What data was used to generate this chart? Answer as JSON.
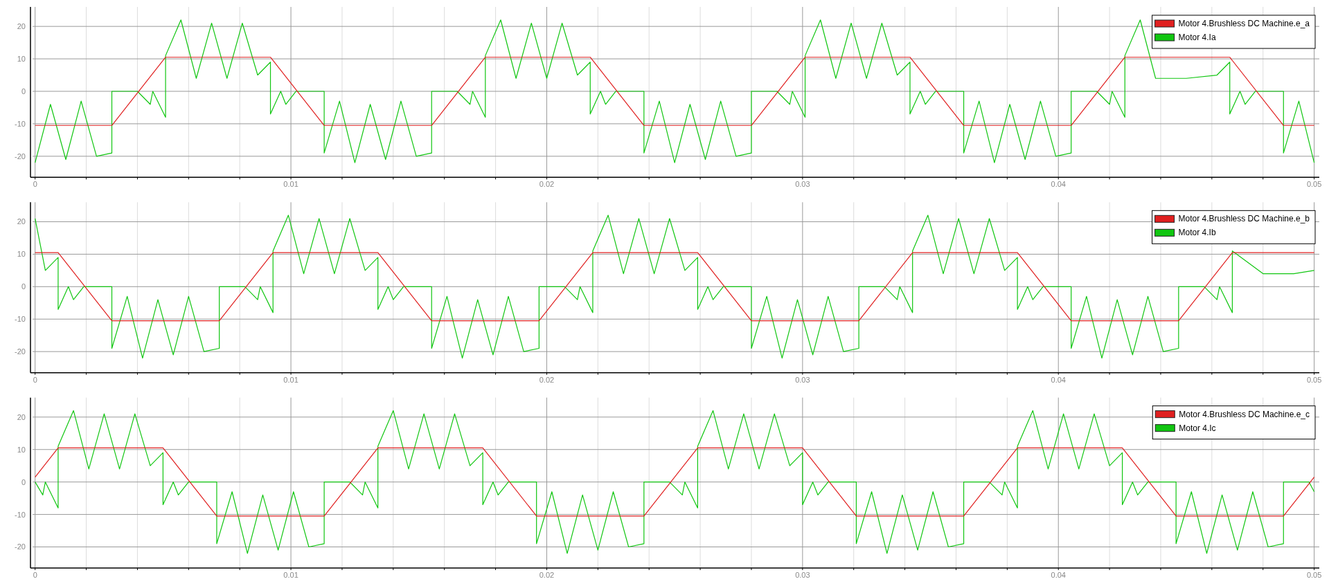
{
  "chart_data": [
    {
      "type": "line",
      "xlim": [
        -0.0001,
        0.0502
      ],
      "ylim": [
        -26.5,
        26
      ],
      "xticks": [
        0,
        {
          "value": 0.002,
          "label": null
        },
        {
          "value": 0.004,
          "label": null
        },
        {
          "value": 0.006,
          "label": null
        },
        {
          "value": 0.008,
          "label": null
        },
        0.01,
        {
          "value": 0.012,
          "label": null
        },
        {
          "value": 0.014,
          "label": null
        },
        {
          "value": 0.016,
          "label": null
        },
        {
          "value": 0.018,
          "label": null
        },
        0.02,
        {
          "value": 0.022,
          "label": null
        },
        {
          "value": 0.024,
          "label": null
        },
        {
          "value": 0.026,
          "label": null
        },
        {
          "value": 0.028,
          "label": null
        },
        0.03,
        {
          "value": 0.032,
          "label": null
        },
        {
          "value": 0.034,
          "label": null
        },
        {
          "value": 0.036,
          "label": null
        },
        {
          "value": 0.038,
          "label": null
        },
        0.04,
        {
          "value": 0.042,
          "label": null
        },
        {
          "value": 0.044,
          "label": null
        },
        {
          "value": 0.046,
          "label": null
        },
        {
          "value": 0.048,
          "label": null
        },
        0.05
      ],
      "yticks": [
        -20,
        -10,
        0,
        10,
        20
      ],
      "grid": true,
      "legend": "top right",
      "series": [
        {
          "name": "Motor 4.Brushless DC Machine.e_a",
          "color": "#e02020",
          "x": [
            0,
            0.003,
            0.0051,
            0.0092,
            0.0113,
            0.0155,
            0.0176,
            0.0217,
            0.0238,
            0.028,
            0.0301,
            0.0342,
            0.0363,
            0.0405,
            0.0426,
            0.0467,
            0.0488,
            0.05
          ],
          "values": [
            -10.5,
            -10.5,
            10.5,
            10.5,
            -10.5,
            -10.5,
            10.5,
            10.5,
            -10.5,
            -10.5,
            10.5,
            10.5,
            -10.5,
            -10.5,
            10.5,
            10.5,
            -10.5,
            -10.5
          ]
        },
        {
          "name": "Motor 4.Ia",
          "color": "#11c611",
          "x": [
            0,
            0.0006,
            0.0012,
            0.0018,
            0.0024,
            0.003,
            0.003,
            0.004,
            0.0045,
            0.0046,
            0.0051,
            0.0051,
            0.0057,
            0.0063,
            0.0069,
            0.0075,
            0.0081,
            0.0087,
            0.0092,
            0.0092,
            0.0096,
            0.0098,
            0.0102,
            0.0113,
            0.0113,
            0.0119,
            0.0125,
            0.0131,
            0.0137,
            0.0143,
            0.0149,
            0.0155,
            0.0155,
            0.0165,
            0.017,
            0.0171,
            0.0176,
            0.0176,
            0.0182,
            0.0188,
            0.0194,
            0.02,
            0.0206,
            0.0212,
            0.0217,
            0.0217,
            0.0221,
            0.0223,
            0.0227,
            0.0238,
            0.0238,
            0.0244,
            0.025,
            0.0256,
            0.0262,
            0.0268,
            0.0274,
            0.028,
            0.028,
            0.029,
            0.0295,
            0.0296,
            0.0301,
            0.0301,
            0.0307,
            0.0313,
            0.0319,
            0.0325,
            0.0331,
            0.0337,
            0.0342,
            0.0342,
            0.0346,
            0.0348,
            0.0352,
            0.0363,
            0.0363,
            0.0369,
            0.0375,
            0.0381,
            0.0387,
            0.0393,
            0.0399,
            0.0405,
            0.0405,
            0.0415,
            0.042,
            0.0421,
            0.0426,
            0.0426,
            0.0432,
            0.0438,
            0.045,
            0.0462,
            0.0467,
            0.0467,
            0.0471,
            0.0473,
            0.0477,
            0.0488,
            0.0488,
            0.0494,
            0.05
          ],
          "values": [
            -22,
            -4,
            -21,
            -3,
            -20,
            -19,
            0,
            0,
            -4,
            0,
            -8,
            11,
            22,
            4,
            21,
            4,
            21,
            5,
            9,
            -7,
            0,
            -4,
            0,
            0,
            -19,
            -3,
            -22,
            -4,
            -21,
            -3,
            -20,
            -19,
            0,
            0,
            -4,
            0,
            -8,
            11,
            22,
            4,
            21,
            4,
            21,
            5,
            9,
            -7,
            0,
            -4,
            0,
            0,
            -19,
            -3,
            -22,
            -4,
            -21,
            -3,
            -20,
            -19,
            0,
            0,
            -4,
            0,
            -8,
            11,
            22,
            4,
            21,
            4,
            21,
            5,
            9,
            -7,
            0,
            -4,
            0,
            0,
            -19,
            -3,
            -22,
            -4,
            -21,
            -3,
            -20,
            -19,
            0,
            0,
            -4,
            0,
            -8,
            11,
            22,
            4,
            4,
            5,
            9,
            -7,
            0,
            -4,
            0,
            0,
            -19,
            -3,
            -22
          ]
        }
      ]
    },
    {
      "type": "line",
      "xlim": [
        -0.0001,
        0.0502
      ],
      "ylim": [
        -26.5,
        26
      ],
      "xticks": [
        0,
        {
          "value": 0.002,
          "label": null
        },
        {
          "value": 0.004,
          "label": null
        },
        {
          "value": 0.006,
          "label": null
        },
        {
          "value": 0.008,
          "label": null
        },
        0.01,
        {
          "value": 0.012,
          "label": null
        },
        {
          "value": 0.014,
          "label": null
        },
        {
          "value": 0.016,
          "label": null
        },
        {
          "value": 0.018,
          "label": null
        },
        0.02,
        {
          "value": 0.022,
          "label": null
        },
        {
          "value": 0.024,
          "label": null
        },
        {
          "value": 0.026,
          "label": null
        },
        {
          "value": 0.028,
          "label": null
        },
        0.03,
        {
          "value": 0.032,
          "label": null
        },
        {
          "value": 0.034,
          "label": null
        },
        {
          "value": 0.036,
          "label": null
        },
        {
          "value": 0.038,
          "label": null
        },
        0.04,
        {
          "value": 0.042,
          "label": null
        },
        {
          "value": 0.044,
          "label": null
        },
        {
          "value": 0.046,
          "label": null
        },
        {
          "value": 0.048,
          "label": null
        },
        0.05
      ],
      "yticks": [
        -20,
        -10,
        0,
        10,
        20
      ],
      "grid": true,
      "legend": "top right",
      "series": [
        {
          "name": "Motor 4.Brushless DC Machine.e_b",
          "color": "#e02020",
          "x": [
            0,
            0.0009,
            0.003,
            0.0072,
            0.0093,
            0.0134,
            0.0155,
            0.0197,
            0.0218,
            0.0259,
            0.028,
            0.0322,
            0.0343,
            0.0384,
            0.0405,
            0.0447,
            0.0468,
            0.05
          ],
          "values": [
            10.5,
            10.5,
            -10.5,
            -10.5,
            10.5,
            10.5,
            -10.5,
            -10.5,
            10.5,
            10.5,
            -10.5,
            -10.5,
            10.5,
            10.5,
            -10.5,
            -10.5,
            10.5,
            10.5
          ]
        },
        {
          "name": "Motor 4.Ib",
          "color": "#11c611",
          "x": [
            0,
            0.0004,
            0.0009,
            0.0009,
            0.0013,
            0.0015,
            0.0019,
            0.003,
            0.003,
            0.0036,
            0.0042,
            0.0048,
            0.0054,
            0.006,
            0.0066,
            0.0072,
            0.0072,
            0.0082,
            0.0087,
            0.0088,
            0.0093,
            0.0093,
            0.0099,
            0.0105,
            0.0111,
            0.0117,
            0.0123,
            0.0129,
            0.0134,
            0.0134,
            0.0138,
            0.014,
            0.0144,
            0.0155,
            0.0155,
            0.0161,
            0.0167,
            0.0173,
            0.0179,
            0.0185,
            0.0191,
            0.0197,
            0.0197,
            0.0207,
            0.0212,
            0.0213,
            0.0218,
            0.0218,
            0.0224,
            0.023,
            0.0236,
            0.0242,
            0.0248,
            0.0254,
            0.0259,
            0.0259,
            0.0263,
            0.0265,
            0.0269,
            0.028,
            0.028,
            0.0286,
            0.0292,
            0.0298,
            0.0304,
            0.031,
            0.0316,
            0.0322,
            0.0322,
            0.0332,
            0.0337,
            0.0338,
            0.0343,
            0.0343,
            0.0349,
            0.0355,
            0.0361,
            0.0367,
            0.0373,
            0.0379,
            0.0384,
            0.0384,
            0.0388,
            0.039,
            0.0394,
            0.0405,
            0.0405,
            0.0411,
            0.0417,
            0.0423,
            0.0429,
            0.0435,
            0.0441,
            0.0447,
            0.0447,
            0.0457,
            0.0462,
            0.0463,
            0.0468,
            0.0468,
            0.048,
            0.0492,
            0.05
          ],
          "values": [
            21,
            5,
            9,
            -7,
            0,
            -4,
            0,
            0,
            -19,
            -3,
            -22,
            -4,
            -21,
            -3,
            -20,
            -19,
            0,
            0,
            -4,
            0,
            -8,
            11,
            22,
            4,
            21,
            4,
            21,
            5,
            9,
            -7,
            0,
            -4,
            0,
            0,
            -19,
            -3,
            -22,
            -4,
            -21,
            -3,
            -20,
            -19,
            0,
            0,
            -4,
            0,
            -8,
            11,
            22,
            4,
            21,
            4,
            21,
            5,
            9,
            -7,
            0,
            -4,
            0,
            0,
            -19,
            -3,
            -22,
            -4,
            -21,
            -3,
            -20,
            -19,
            0,
            0,
            -4,
            0,
            -8,
            11,
            22,
            4,
            21,
            4,
            21,
            5,
            9,
            -7,
            0,
            -4,
            0,
            0,
            -19,
            -3,
            -22,
            -4,
            -21,
            -3,
            -20,
            -19,
            0,
            0,
            -4,
            0,
            -8,
            11,
            4,
            4,
            5
          ]
        }
      ]
    },
    {
      "type": "line",
      "xlim": [
        -0.0001,
        0.0502
      ],
      "ylim": [
        -26.5,
        26
      ],
      "xticks": [
        0,
        {
          "value": 0.002,
          "label": null
        },
        {
          "value": 0.004,
          "label": null
        },
        {
          "value": 0.006,
          "label": null
        },
        {
          "value": 0.008,
          "label": null
        },
        0.01,
        {
          "value": 0.012,
          "label": null
        },
        {
          "value": 0.014,
          "label": null
        },
        {
          "value": 0.016,
          "label": null
        },
        {
          "value": 0.018,
          "label": null
        },
        0.02,
        {
          "value": 0.022,
          "label": null
        },
        {
          "value": 0.024,
          "label": null
        },
        {
          "value": 0.026,
          "label": null
        },
        {
          "value": 0.028,
          "label": null
        },
        0.03,
        {
          "value": 0.032,
          "label": null
        },
        {
          "value": 0.034,
          "label": null
        },
        {
          "value": 0.036,
          "label": null
        },
        {
          "value": 0.038,
          "label": null
        },
        0.04,
        {
          "value": 0.042,
          "label": null
        },
        {
          "value": 0.044,
          "label": null
        },
        {
          "value": 0.046,
          "label": null
        },
        {
          "value": 0.048,
          "label": null
        },
        0.05
      ],
      "yticks": [
        -20,
        -10,
        0,
        10,
        20
      ],
      "grid": true,
      "legend": "top right",
      "series": [
        {
          "name": "Motor 4.Brushless DC Machine.e_c",
          "color": "#e02020",
          "x": [
            0,
            0.0009,
            0.005,
            0.0071,
            0.0113,
            0.0134,
            0.0175,
            0.0196,
            0.0238,
            0.0259,
            0.03,
            0.0321,
            0.0363,
            0.0384,
            0.0425,
            0.0446,
            0.0488,
            0.05
          ],
          "values": [
            1.5,
            10.5,
            10.5,
            -10.5,
            -10.5,
            10.5,
            10.5,
            -10.5,
            -10.5,
            10.5,
            10.5,
            -10.5,
            -10.5,
            10.5,
            10.5,
            -10.5,
            -10.5,
            1.5
          ]
        },
        {
          "name": "Motor 4.Ic",
          "color": "#11c611",
          "x": [
            0,
            0.0003,
            0.0004,
            0.0009,
            0.0009,
            0.0015,
            0.0021,
            0.0027,
            0.0033,
            0.0039,
            0.0045,
            0.005,
            0.005,
            0.0054,
            0.0056,
            0.006,
            0.0071,
            0.0071,
            0.0077,
            0.0083,
            0.0089,
            0.0095,
            0.0101,
            0.0107,
            0.0113,
            0.0113,
            0.0123,
            0.0128,
            0.0129,
            0.0134,
            0.0134,
            0.014,
            0.0146,
            0.0152,
            0.0158,
            0.0164,
            0.017,
            0.0175,
            0.0175,
            0.0179,
            0.0181,
            0.0185,
            0.0196,
            0.0196,
            0.0202,
            0.0208,
            0.0214,
            0.022,
            0.0226,
            0.0232,
            0.0238,
            0.0238,
            0.0248,
            0.0253,
            0.0254,
            0.0259,
            0.0259,
            0.0265,
            0.0271,
            0.0277,
            0.0283,
            0.0289,
            0.0295,
            0.03,
            0.03,
            0.0304,
            0.0306,
            0.031,
            0.0321,
            0.0321,
            0.0327,
            0.0333,
            0.0339,
            0.0345,
            0.0351,
            0.0357,
            0.0363,
            0.0363,
            0.0373,
            0.0378,
            0.0379,
            0.0384,
            0.0384,
            0.039,
            0.0396,
            0.0402,
            0.0408,
            0.0414,
            0.042,
            0.0425,
            0.0425,
            0.0429,
            0.0431,
            0.0435,
            0.0446,
            0.0446,
            0.0452,
            0.0458,
            0.0464,
            0.047,
            0.0476,
            0.0482,
            0.0488,
            0.0488,
            0.0498,
            0.05
          ],
          "values": [
            0,
            -4,
            0,
            -8,
            11,
            22,
            4,
            21,
            4,
            21,
            5,
            9,
            -7,
            0,
            -4,
            0,
            0,
            -19,
            -3,
            -22,
            -4,
            -21,
            -3,
            -20,
            -19,
            0,
            0,
            -4,
            0,
            -8,
            11,
            22,
            4,
            21,
            4,
            21,
            5,
            9,
            -7,
            0,
            -4,
            0,
            0,
            -19,
            -3,
            -22,
            -4,
            -21,
            -3,
            -20,
            -19,
            0,
            0,
            -4,
            0,
            -8,
            11,
            22,
            4,
            21,
            4,
            21,
            5,
            9,
            -7,
            0,
            -4,
            0,
            0,
            -19,
            -3,
            -22,
            -4,
            -21,
            -3,
            -20,
            -19,
            0,
            0,
            -4,
            0,
            -8,
            11,
            22,
            4,
            21,
            4,
            21,
            5,
            9,
            -7,
            0,
            -4,
            0,
            0,
            -19,
            -3,
            -22,
            -4,
            -21,
            -3,
            -20,
            -19,
            0,
            0,
            -3
          ]
        }
      ]
    }
  ]
}
